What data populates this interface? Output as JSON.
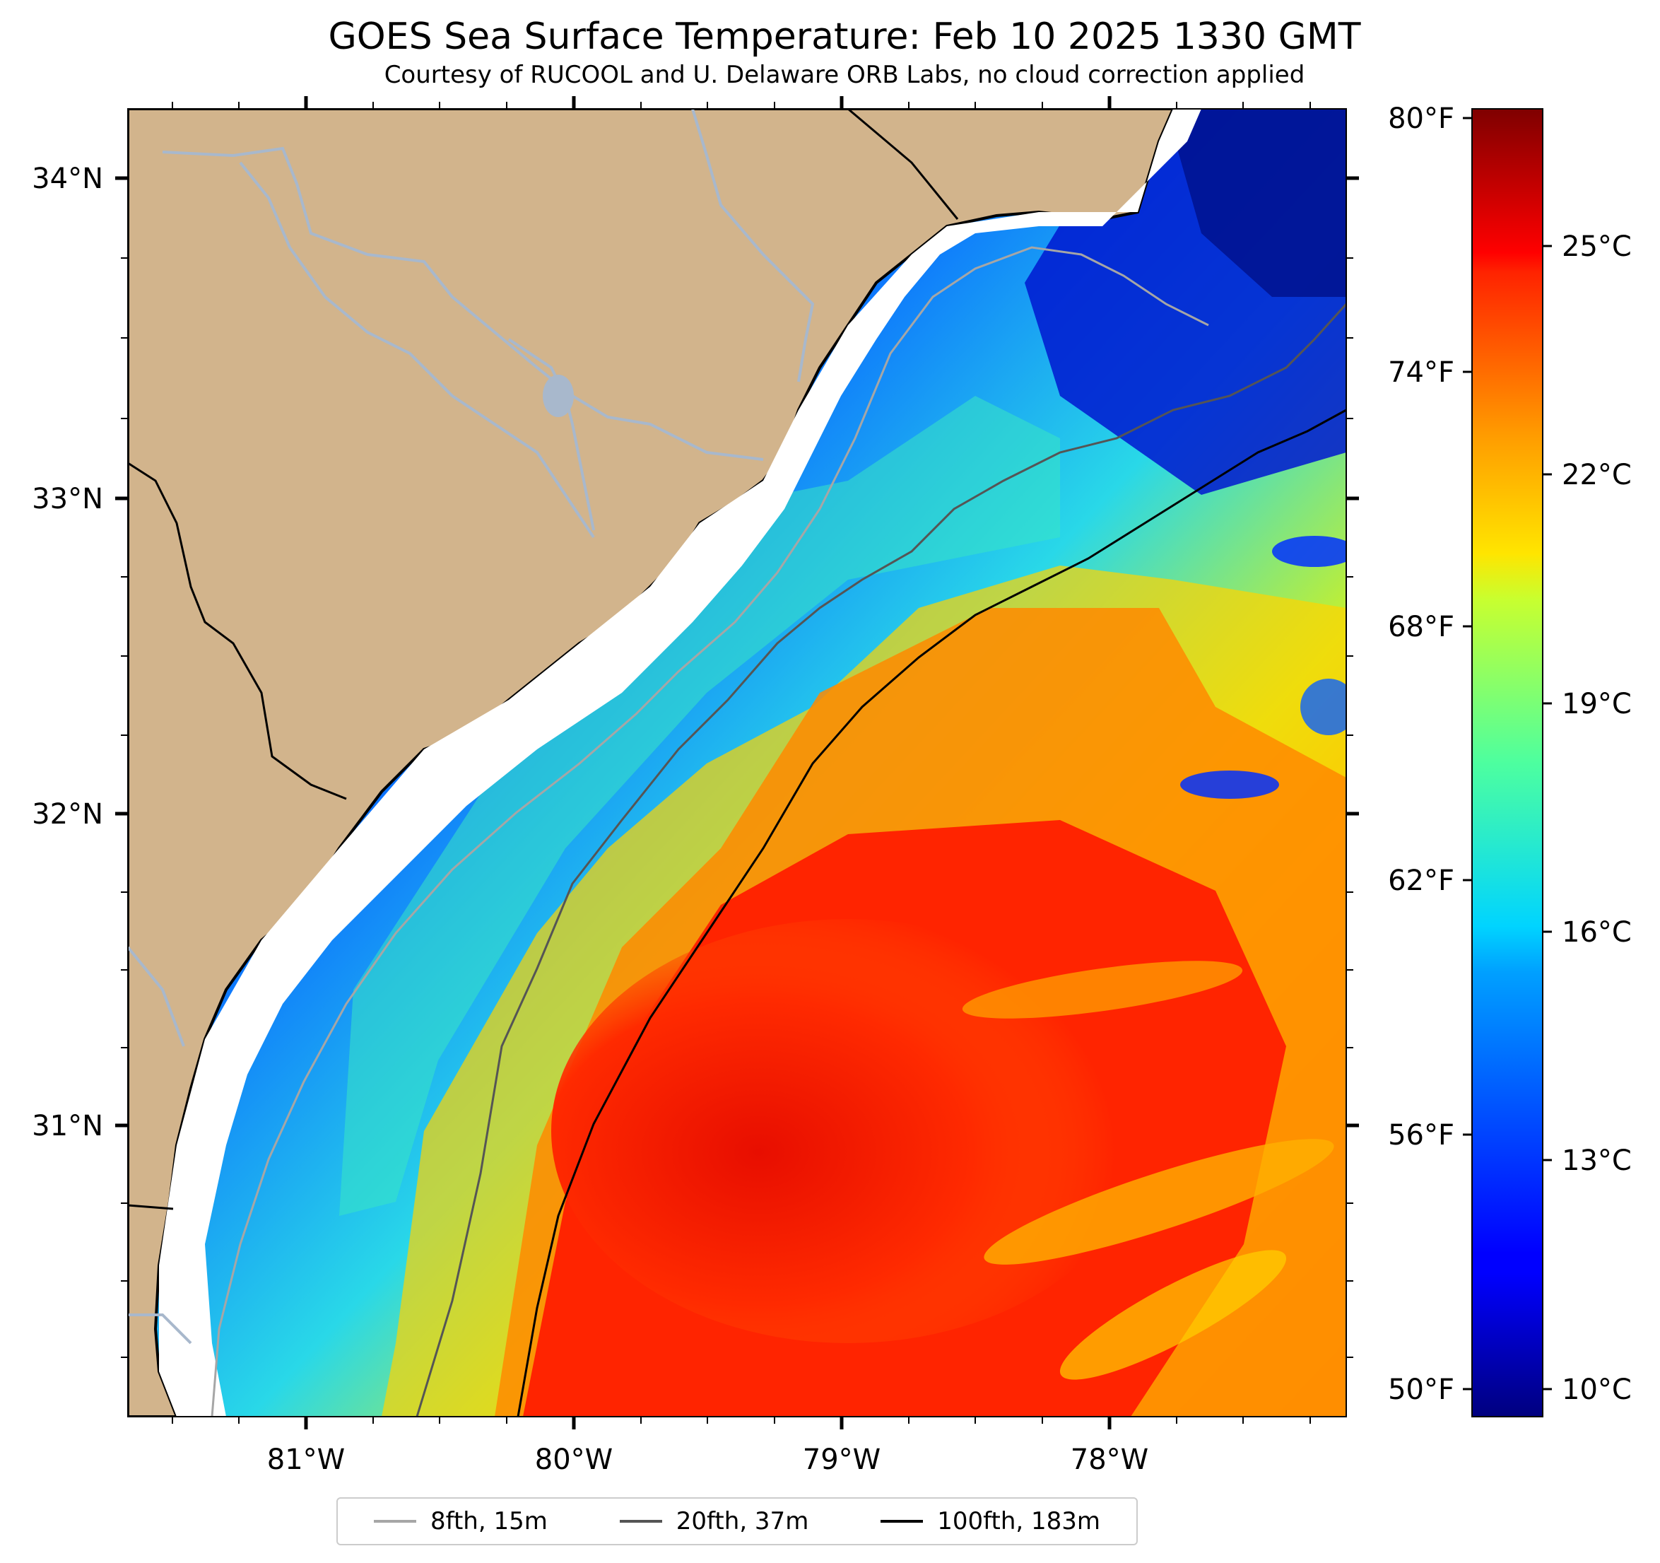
{
  "title": "GOES Sea Surface Temperature: Feb 10 2025 1330 GMT",
  "subtitle": "Courtesy of RUCOOL and U. Delaware ORB Labs, no cloud correction applied",
  "map": {
    "lon_ticks": [
      "81°W",
      "80°W",
      "79°W",
      "78°W"
    ],
    "lat_ticks": [
      "34°N",
      "33°N",
      "32°N",
      "31°N"
    ],
    "land_color": "#d2b48c",
    "river_color": "#a8b8cc"
  },
  "colorbar": {
    "celsius_ticks": [
      "25°C",
      "22°C",
      "19°C",
      "16°C",
      "13°C",
      "10°C"
    ],
    "fahrenheit_ticks": [
      "80°F",
      "74°F",
      "68°F",
      "62°F",
      "56°F",
      "50°F"
    ],
    "range_celsius": [
      9.5,
      26.8
    ],
    "colormap": "jet"
  },
  "legend": [
    {
      "label": "8fth, 15m",
      "color": "#a6a6a6"
    },
    {
      "label": "20fth, 37m",
      "color": "#555555"
    },
    {
      "label": "100fth, 183m",
      "color": "#000000"
    }
  ]
}
